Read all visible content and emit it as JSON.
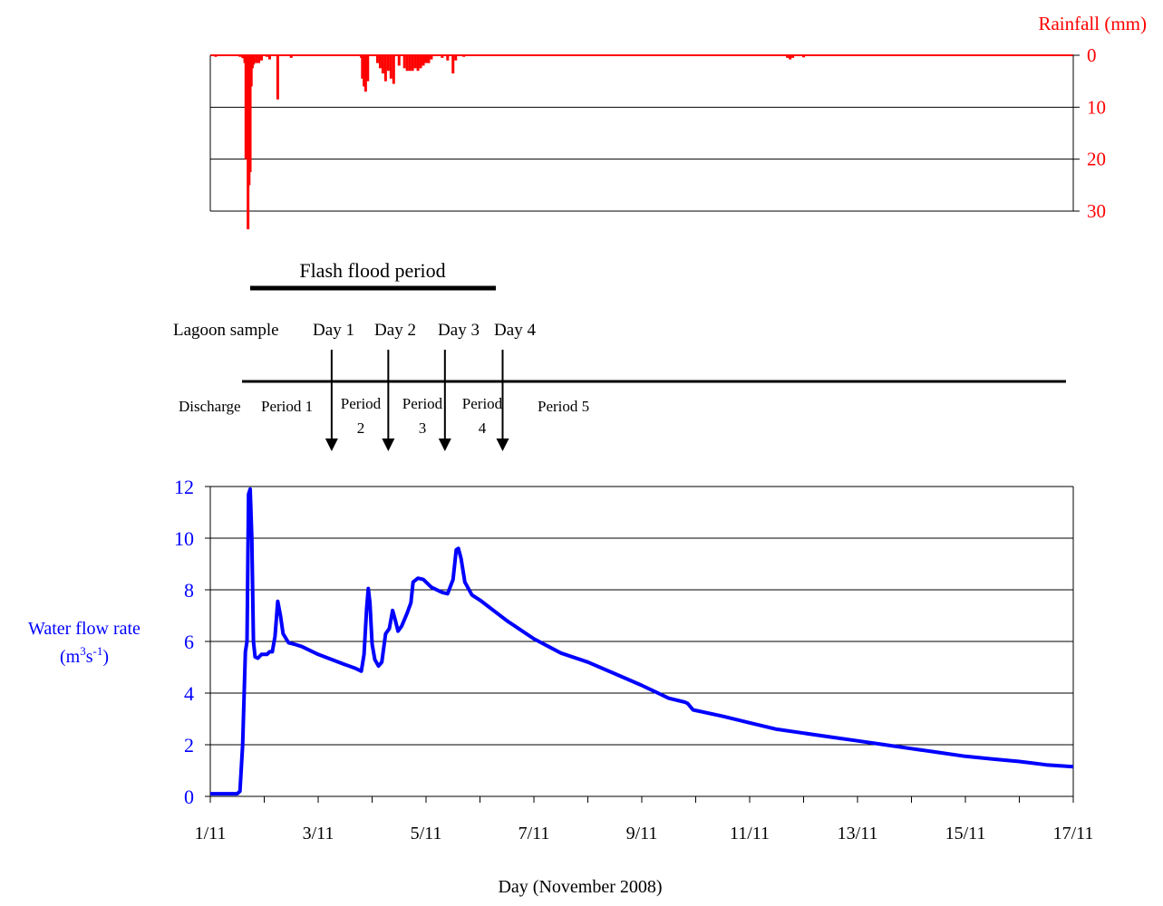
{
  "chart_data": [
    {
      "type": "bar",
      "ylabel": "Rainfall (mm)",
      "yaxis_side": "right",
      "inverted": true,
      "ylim": [
        0,
        30
      ],
      "yticks": [
        "0",
        "10",
        "20",
        "30"
      ],
      "xlim": [
        1,
        17
      ],
      "color": "#ff0000",
      "bars": [
        [
          1.1,
          0.3
        ],
        [
          1.55,
          0.3
        ],
        [
          1.6,
          0.5
        ],
        [
          1.62,
          0.6
        ],
        [
          1.64,
          1.5
        ],
        [
          1.66,
          20
        ],
        [
          1.68,
          12
        ],
        [
          1.7,
          33.5
        ],
        [
          1.72,
          25
        ],
        [
          1.74,
          22.5
        ],
        [
          1.76,
          6
        ],
        [
          1.78,
          2.5
        ],
        [
          1.8,
          1.8
        ],
        [
          1.85,
          1.5
        ],
        [
          1.9,
          1.5
        ],
        [
          1.95,
          1.0
        ],
        [
          2.05,
          0.3
        ],
        [
          2.1,
          0.8
        ],
        [
          2.25,
          8.5
        ],
        [
          2.5,
          0.5
        ],
        [
          3.8,
          0.5
        ],
        [
          3.82,
          4.5
        ],
        [
          3.85,
          6
        ],
        [
          3.88,
          7
        ],
        [
          3.92,
          5
        ],
        [
          4.1,
          1.5
        ],
        [
          4.15,
          2.5
        ],
        [
          4.2,
          3.5
        ],
        [
          4.25,
          5
        ],
        [
          4.3,
          3
        ],
        [
          4.35,
          4.5
        ],
        [
          4.4,
          5.5
        ],
        [
          4.5,
          2
        ],
        [
          4.6,
          2.5
        ],
        [
          4.65,
          3
        ],
        [
          4.7,
          3
        ],
        [
          4.75,
          3
        ],
        [
          4.8,
          2.5
        ],
        [
          4.85,
          3
        ],
        [
          4.9,
          2.5
        ],
        [
          4.95,
          2
        ],
        [
          5.0,
          1.5
        ],
        [
          5.05,
          1.5
        ],
        [
          5.1,
          0.8
        ],
        [
          5.3,
          0.5
        ],
        [
          5.4,
          1
        ],
        [
          5.5,
          3.5
        ],
        [
          5.55,
          1
        ],
        [
          5.7,
          0.3
        ],
        [
          11.7,
          0.5
        ],
        [
          11.75,
          0.8
        ],
        [
          11.8,
          0.5
        ],
        [
          12.0,
          0.4
        ]
      ]
    },
    {
      "type": "line",
      "ylabel_line1": "Water flow rate",
      "ylabel_unit_base": "(m",
      "ylabel_unit_sup1": "3",
      "ylabel_unit_mid": "s",
      "ylabel_unit_sup2": "-1",
      "ylabel_unit_end": ")",
      "xlabel": "Day (November 2008)",
      "xlim": [
        1,
        17
      ],
      "ylim": [
        0,
        12
      ],
      "yticks": [
        "0",
        "2",
        "4",
        "6",
        "8",
        "10",
        "12"
      ],
      "xticks": [
        {
          "v": 1,
          "label": "1/11"
        },
        {
          "v": 3,
          "label": "3/11"
        },
        {
          "v": 5,
          "label": "5/11"
        },
        {
          "v": 7,
          "label": "7/11"
        },
        {
          "v": 9,
          "label": "9/11"
        },
        {
          "v": 11,
          "label": "11/11"
        },
        {
          "v": 13,
          "label": "13/11"
        },
        {
          "v": 15,
          "label": "15/11"
        },
        {
          "v": 17,
          "label": "17/11"
        }
      ],
      "color": "#0000ff",
      "series": [
        {
          "points": [
            [
              1.0,
              0.1
            ],
            [
              1.5,
              0.1
            ],
            [
              1.55,
              0.2
            ],
            [
              1.6,
              2.0
            ],
            [
              1.65,
              5.6
            ],
            [
              1.68,
              6.0
            ],
            [
              1.71,
              11.7
            ],
            [
              1.74,
              11.9
            ],
            [
              1.77,
              10.0
            ],
            [
              1.8,
              6.0
            ],
            [
              1.83,
              5.4
            ],
            [
              1.88,
              5.35
            ],
            [
              1.95,
              5.5
            ],
            [
              2.05,
              5.5
            ],
            [
              2.1,
              5.6
            ],
            [
              2.15,
              5.6
            ],
            [
              2.2,
              6.2
            ],
            [
              2.25,
              7.55
            ],
            [
              2.3,
              7.0
            ],
            [
              2.35,
              6.3
            ],
            [
              2.45,
              5.95
            ],
            [
              2.55,
              5.9
            ],
            [
              2.7,
              5.8
            ],
            [
              3.0,
              5.5
            ],
            [
              3.5,
              5.1
            ],
            [
              3.7,
              4.95
            ],
            [
              3.8,
              4.85
            ],
            [
              3.85,
              5.5
            ],
            [
              3.9,
              7.3
            ],
            [
              3.93,
              8.05
            ],
            [
              3.96,
              7.5
            ],
            [
              4.0,
              5.9
            ],
            [
              4.05,
              5.3
            ],
            [
              4.12,
              5.05
            ],
            [
              4.18,
              5.2
            ],
            [
              4.25,
              6.3
            ],
            [
              4.32,
              6.5
            ],
            [
              4.38,
              7.2
            ],
            [
              4.42,
              6.9
            ],
            [
              4.48,
              6.4
            ],
            [
              4.55,
              6.6
            ],
            [
              4.65,
              7.1
            ],
            [
              4.72,
              7.5
            ],
            [
              4.76,
              8.3
            ],
            [
              4.85,
              8.45
            ],
            [
              4.95,
              8.4
            ],
            [
              5.1,
              8.1
            ],
            [
              5.3,
              7.9
            ],
            [
              5.4,
              7.85
            ],
            [
              5.5,
              8.4
            ],
            [
              5.56,
              9.55
            ],
            [
              5.6,
              9.6
            ],
            [
              5.65,
              9.2
            ],
            [
              5.72,
              8.3
            ],
            [
              5.85,
              7.8
            ],
            [
              6.0,
              7.6
            ],
            [
              6.5,
              6.8
            ],
            [
              7.0,
              6.1
            ],
            [
              7.5,
              5.55
            ],
            [
              8.0,
              5.2
            ],
            [
              8.5,
              4.75
            ],
            [
              9.0,
              4.3
            ],
            [
              9.3,
              4.0
            ],
            [
              9.5,
              3.8
            ],
            [
              9.8,
              3.65
            ],
            [
              9.85,
              3.6
            ],
            [
              9.95,
              3.35
            ],
            [
              10.5,
              3.1
            ],
            [
              11.0,
              2.85
            ],
            [
              11.5,
              2.6
            ],
            [
              12.0,
              2.45
            ],
            [
              12.5,
              2.3
            ],
            [
              13.0,
              2.15
            ],
            [
              13.5,
              2.0
            ],
            [
              14.0,
              1.85
            ],
            [
              14.5,
              1.7
            ],
            [
              15.0,
              1.55
            ],
            [
              15.5,
              1.45
            ],
            [
              16.0,
              1.35
            ],
            [
              16.5,
              1.22
            ],
            [
              17.0,
              1.15
            ]
          ]
        }
      ]
    }
  ],
  "annotations": {
    "flash_flood_label": "Flash flood period",
    "lagoon_sample_label": "Lagoon sample",
    "sample_days": [
      {
        "label": "Day 1",
        "day": 3.25
      },
      {
        "label": "Day 2",
        "day": 4.3
      },
      {
        "label": "Day 3",
        "day": 5.35
      },
      {
        "label": "Day 4",
        "day": 6.42
      }
    ],
    "discharge_label": "Discharge",
    "periods": [
      {
        "line1": "Period 1",
        "line2": ""
      },
      {
        "line1": "Period",
        "line2": "2"
      },
      {
        "line1": "Period",
        "line2": "3"
      },
      {
        "line1": "Period",
        "line2": "4"
      },
      {
        "line1": "Period 5",
        "line2": ""
      }
    ]
  }
}
